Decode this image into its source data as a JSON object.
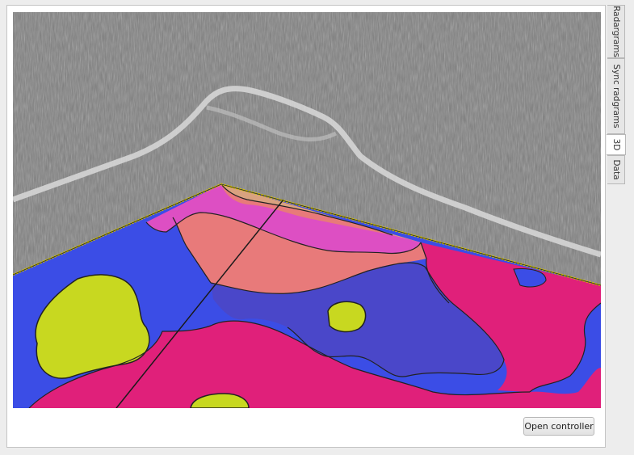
{
  "tabs": [
    {
      "label": "Radargrams",
      "active": false
    },
    {
      "label": "Sync radgrams",
      "active": false
    },
    {
      "label": "3D",
      "active": true
    },
    {
      "label": "Data",
      "active": false
    }
  ],
  "controller_button": {
    "label": "Open controller"
  },
  "colors": {
    "blue": "#3b4de6",
    "indigo": "#4a47c9",
    "magenta": "#e0207a",
    "pink": "#dd4fc3",
    "salmon": "#e87a7a",
    "tan": "#d9a27f",
    "lime": "#c8d820",
    "edge": "#d4c400"
  }
}
